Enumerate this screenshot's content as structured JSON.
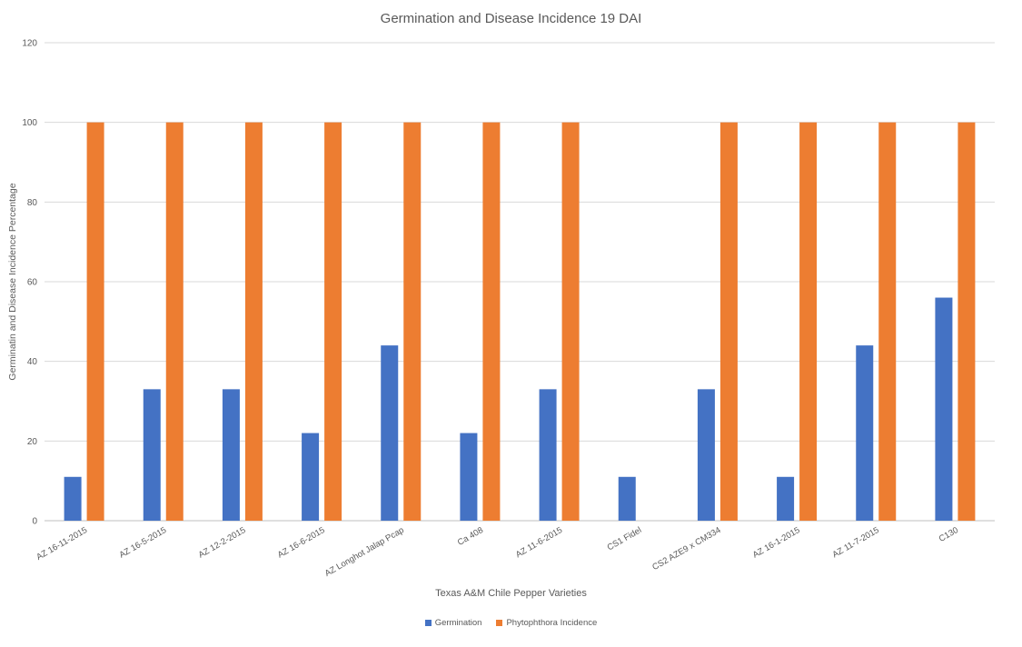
{
  "chart_data": {
    "type": "bar",
    "title": "Germination and Disease Incidence 19 DAI",
    "xlabel": "Texas A&M Chile Pepper Varieties",
    "ylabel": "Germinatin and Disease Incidence Percentage",
    "ylim": [
      0,
      120
    ],
    "yticks": [
      "0",
      "20",
      "40",
      "60",
      "80",
      "100",
      "120"
    ],
    "grid": true,
    "legend_position": "bottom",
    "categories": [
      "AZ 16-11-2015",
      "AZ 16-5-2015",
      "AZ 12-2-2015",
      "AZ 16-6-2015",
      "AZ Longhot Jalap Pcap",
      "Ca 408",
      "AZ 11-6-2015",
      "CS1 Fidel",
      "CS2 AZE9 x CM334",
      "AZ 16-1-2015",
      "AZ 11-7-2015",
      "C130"
    ],
    "series": [
      {
        "name": "Germination",
        "color": "#4472C4",
        "values": [
          11,
          33,
          33,
          22,
          44,
          22,
          33,
          11,
          33,
          11,
          44,
          56
        ]
      },
      {
        "name": "Phytophthora Incidence",
        "color": "#ED7D31",
        "values": [
          100,
          100,
          100,
          100,
          100,
          100,
          100,
          0,
          100,
          100,
          100,
          100
        ]
      }
    ]
  }
}
